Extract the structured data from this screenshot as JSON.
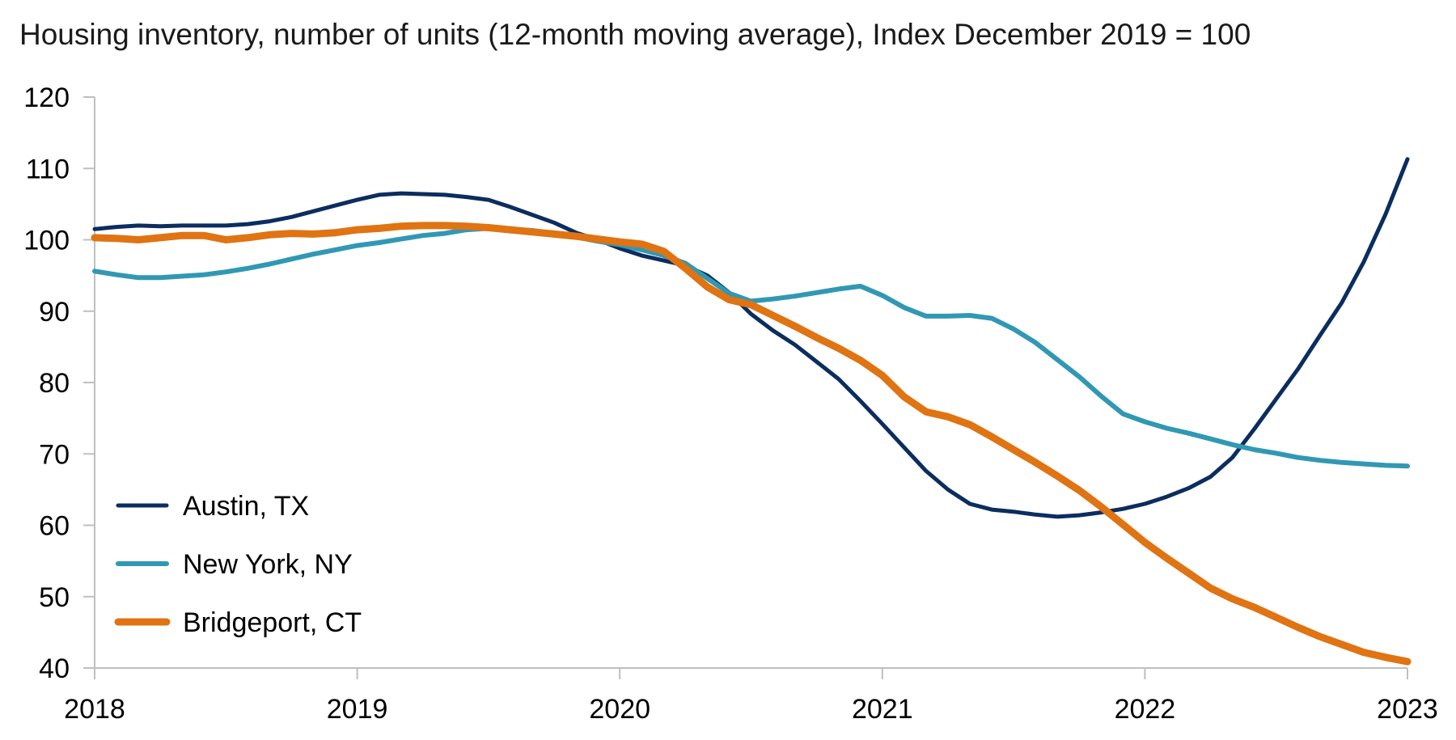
{
  "chart_data": {
    "type": "line",
    "title": "Housing inventory, number of units (12-month moving average), Index December 2019 = 100",
    "xlabel": "",
    "ylabel": "",
    "xlim": [
      2018,
      2023
    ],
    "ylim": [
      40,
      120
    ],
    "x_ticks": [
      "2018",
      "2019",
      "2020",
      "2021",
      "2022",
      "2023"
    ],
    "y_ticks": [
      "40",
      "50",
      "60",
      "70",
      "80",
      "90",
      "100",
      "110",
      "120"
    ],
    "grid": false,
    "legend_position": "bottom-left",
    "x": [
      2018.0,
      2018.0833,
      2018.1667,
      2018.25,
      2018.3333,
      2018.4167,
      2018.5,
      2018.5833,
      2018.6667,
      2018.75,
      2018.8333,
      2018.9167,
      2019.0,
      2019.0833,
      2019.1667,
      2019.25,
      2019.3333,
      2019.4167,
      2019.5,
      2019.5833,
      2019.6667,
      2019.75,
      2019.8333,
      2019.9167,
      2020.0,
      2020.0833,
      2020.1667,
      2020.25,
      2020.3333,
      2020.4167,
      2020.5,
      2020.5833,
      2020.6667,
      2020.75,
      2020.8333,
      2020.9167,
      2021.0,
      2021.0833,
      2021.1667,
      2021.25,
      2021.3333,
      2021.4167,
      2021.5,
      2021.5833,
      2021.6667,
      2021.75,
      2021.8333,
      2021.9167,
      2022.0,
      2022.0833,
      2022.1667,
      2022.25,
      2022.3333,
      2022.4167,
      2022.5,
      2022.5833,
      2022.6667,
      2022.75,
      2022.8333,
      2022.9167,
      2023.0
    ],
    "series": [
      {
        "name": "Austin, TX",
        "color": "#0b2d5f",
        "values": [
          101.5,
          101.8,
          102.0,
          101.9,
          102.0,
          102.0,
          102.0,
          102.2,
          102.6,
          103.2,
          104.0,
          104.8,
          105.6,
          106.3,
          106.5,
          106.4,
          106.3,
          106.0,
          105.6,
          104.6,
          103.5,
          102.4,
          101.0,
          100.0,
          98.8,
          97.8,
          97.1,
          96.4,
          95.0,
          92.6,
          89.6,
          87.3,
          85.3,
          82.9,
          80.5,
          77.4,
          74.2,
          70.9,
          67.6,
          65.0,
          63.0,
          62.2,
          61.9,
          61.5,
          61.2,
          61.4,
          61.8,
          62.3,
          63.0,
          64.0,
          65.2,
          66.8,
          69.5,
          73.5,
          77.7,
          81.9,
          86.6,
          91.2,
          96.9,
          103.6,
          111.3
        ]
      },
      {
        "name": "New York, NY",
        "color": "#3198b4",
        "values": [
          95.6,
          95.1,
          94.7,
          94.7,
          94.9,
          95.1,
          95.5,
          96.0,
          96.6,
          97.3,
          98.0,
          98.6,
          99.2,
          99.6,
          100.1,
          100.6,
          100.9,
          101.4,
          101.6,
          101.5,
          101.3,
          100.9,
          100.4,
          99.8,
          99.3,
          98.6,
          97.8,
          96.7,
          94.6,
          92.5,
          91.4,
          91.7,
          92.1,
          92.6,
          93.1,
          93.5,
          92.2,
          90.5,
          89.3,
          89.3,
          89.4,
          89.0,
          87.5,
          85.6,
          83.2,
          80.8,
          78.1,
          75.6,
          74.5,
          73.6,
          72.9,
          72.1,
          71.3,
          70.6,
          70.1,
          69.5,
          69.1,
          68.8,
          68.6,
          68.4,
          68.3
        ]
      },
      {
        "name": "Bridgeport, CT",
        "color": "#e07312",
        "values": [
          100.3,
          100.2,
          100.0,
          100.3,
          100.6,
          100.6,
          100.0,
          100.3,
          100.7,
          100.9,
          100.8,
          101.0,
          101.4,
          101.6,
          101.9,
          102.0,
          102.0,
          101.9,
          101.7,
          101.4,
          101.1,
          100.8,
          100.5,
          100.1,
          99.7,
          99.4,
          98.4,
          96.0,
          93.4,
          91.6,
          90.9,
          89.4,
          87.9,
          86.3,
          84.8,
          83.1,
          81.0,
          78.0,
          75.9,
          75.2,
          74.1,
          72.4,
          70.6,
          68.8,
          66.9,
          64.9,
          62.6,
          60.1,
          57.6,
          55.4,
          53.3,
          51.2,
          49.7,
          48.5,
          47.1,
          45.7,
          44.4,
          43.3,
          42.2,
          41.5,
          40.9
        ]
      }
    ]
  }
}
